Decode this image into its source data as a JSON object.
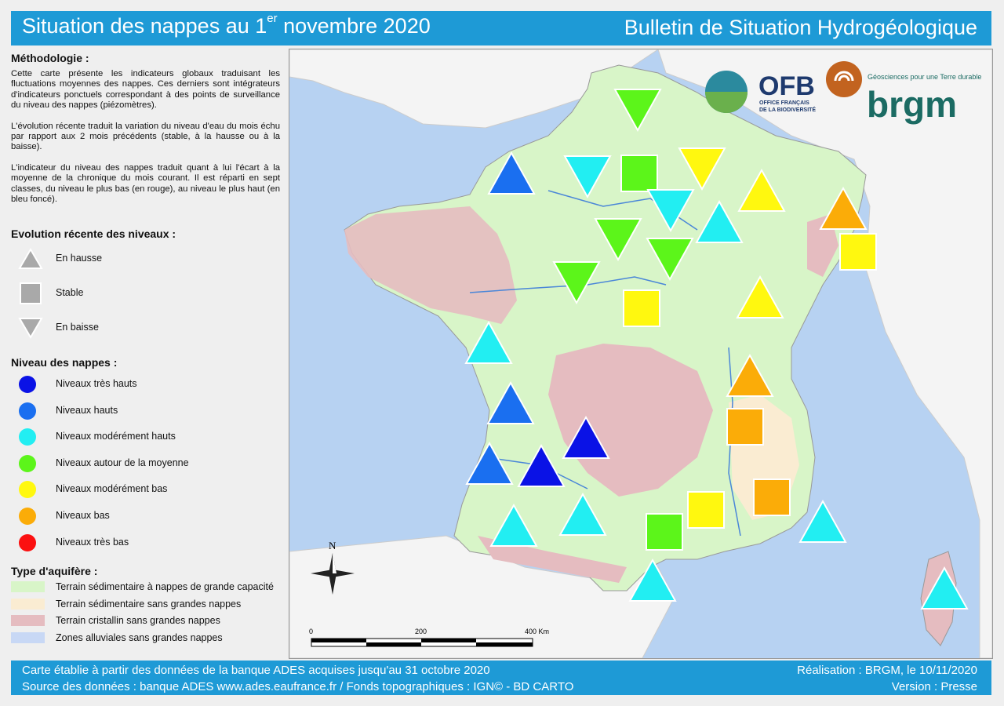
{
  "header": {
    "title_prefix": "Situation des nappes au 1",
    "title_sup": "er",
    "title_suffix": " novembre 2020",
    "right_title": "Bulletin de Situation Hydrogéologique"
  },
  "methodology": {
    "heading": "Méthodologie :",
    "p1": "Cette carte présente les indicateurs globaux traduisant les fluctuations moyennes des nappes. Ces derniers sont intégrateurs d'indicateurs ponctuels correspondant à des points de surveillance du niveau des nappes (piézomètres).",
    "p2": "L'évolution récente traduit la variation du niveau d'eau du mois échu par rapport aux 2 mois précédents (stable, à la hausse ou à la baisse).",
    "p3": "L'indicateur du niveau des nappes traduit quant à lui l'écart à la moyenne de la chronique du mois courant. Il est réparti en sept classes, du niveau le plus bas (en rouge), au niveau le plus haut (en bleu foncé)."
  },
  "evolution_legend": {
    "heading": "Evolution récente des niveaux :",
    "items": [
      {
        "label": "En hausse",
        "shape": "triangle-up"
      },
      {
        "label": "Stable",
        "shape": "square"
      },
      {
        "label": "En baisse",
        "shape": "triangle-down"
      }
    ]
  },
  "level_legend": {
    "heading": "Niveau des nappes :",
    "items": [
      {
        "label": "Niveaux très hauts",
        "color": "#0a12e6"
      },
      {
        "label": "Niveaux hauts",
        "color": "#1a6ff0"
      },
      {
        "label": "Niveaux modérément hauts",
        "color": "#22eef2"
      },
      {
        "label": "Niveaux autour de la moyenne",
        "color": "#5cf51a"
      },
      {
        "label": "Niveaux modérément bas",
        "color": "#fff80f"
      },
      {
        "label": "Niveaux bas",
        "color": "#fbac08"
      },
      {
        "label": "Niveaux très bas",
        "color": "#fb1010"
      }
    ]
  },
  "aquifer_legend": {
    "heading": "Type d'aquifère :",
    "items": [
      {
        "label": "Terrain sédimentaire à nappes de grande capacité",
        "color": "#d8f5c8"
      },
      {
        "label": "Terrain sédimentaire sans grandes nappes",
        "color": "#faecd2"
      },
      {
        "label": "Terrain cristallin sans grandes nappes",
        "color": "#e5bcc0"
      },
      {
        "label": "Zones alluviales sans grandes nappes",
        "color": "#c8d8f5"
      }
    ]
  },
  "map": {
    "north_label": "N",
    "scale": {
      "labels": [
        "0",
        "200",
        "400 Km"
      ]
    },
    "logos": {
      "ofb_name": "OFB",
      "ofb_sub1": "OFFICE FRANÇAIS",
      "ofb_sub2": "DE LA BIODIVERSITÉ",
      "brgm_tagline": "Géosciences pour une Terre durable",
      "brgm_name": "brgm"
    },
    "indicators": [
      {
        "shape": "triangle-down",
        "level": "Niveaux autour de la moyenne"
      },
      {
        "shape": "triangle-up",
        "level": "Niveaux hauts"
      },
      {
        "shape": "triangle-down",
        "level": "Niveaux modérément hauts"
      },
      {
        "shape": "square",
        "level": "Niveaux autour de la moyenne"
      },
      {
        "shape": "triangle-down",
        "level": "Niveaux modérément bas"
      },
      {
        "shape": "triangle-up",
        "level": "Niveaux modérément bas"
      },
      {
        "shape": "triangle-up",
        "level": "Niveaux bas"
      },
      {
        "shape": "triangle-down",
        "level": "Niveaux modérément hauts"
      },
      {
        "shape": "triangle-up",
        "level": "Niveaux modérément hauts"
      },
      {
        "shape": "square",
        "level": "Niveaux modérément bas"
      },
      {
        "shape": "triangle-down",
        "level": "Niveaux autour de la moyenne"
      },
      {
        "shape": "triangle-down",
        "level": "Niveaux autour de la moyenne"
      },
      {
        "shape": "triangle-down",
        "level": "Niveaux autour de la moyenne"
      },
      {
        "shape": "square",
        "level": "Niveaux modérément bas"
      },
      {
        "shape": "triangle-up",
        "level": "Niveaux modérément bas"
      },
      {
        "shape": "triangle-up",
        "level": "Niveaux modérément hauts"
      },
      {
        "shape": "triangle-up",
        "level": "Niveaux bas"
      },
      {
        "shape": "square",
        "level": "Niveaux bas"
      },
      {
        "shape": "triangle-up",
        "level": "Niveaux hauts"
      },
      {
        "shape": "triangle-up",
        "level": "Niveaux très hauts"
      },
      {
        "shape": "triangle-up",
        "level": "Niveaux hauts"
      },
      {
        "shape": "triangle-up",
        "level": "Niveaux très hauts"
      },
      {
        "shape": "square",
        "level": "Niveaux bas"
      },
      {
        "shape": "square",
        "level": "Niveaux modérément bas"
      },
      {
        "shape": "triangle-up",
        "level": "Niveaux modérément hauts"
      },
      {
        "shape": "triangle-up",
        "level": "Niveaux modérément hauts"
      },
      {
        "shape": "square",
        "level": "Niveaux autour de la moyenne"
      },
      {
        "shape": "triangle-up",
        "level": "Niveaux modérément hauts"
      },
      {
        "shape": "triangle-up",
        "level": "Niveaux modérément hauts"
      },
      {
        "shape": "triangle-up",
        "level": "Niveaux modérément hauts"
      }
    ]
  },
  "footer": {
    "left1": "Carte établie à partir des données de la banque ADES acquises jusqu'au 31 octobre 2020",
    "left2": "Source des données : banque ADES www.ades.eaufrance.fr / Fonds topographiques : IGN© - BD CARTO",
    "right1": "Réalisation : BRGM, le 10/11/2020",
    "right2": "Version : Presse"
  }
}
